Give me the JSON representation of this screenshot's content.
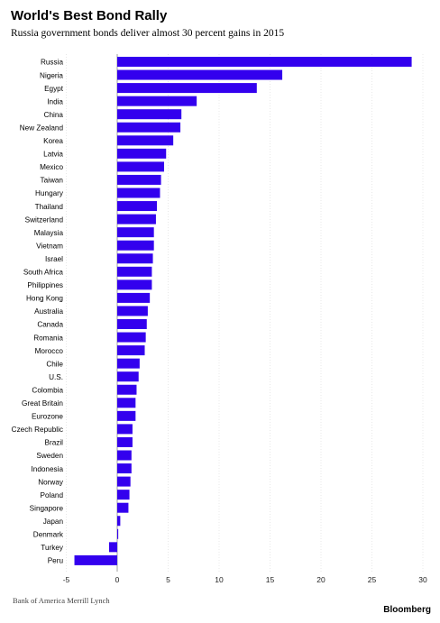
{
  "header": {
    "title": "World's Best Bond Rally",
    "subtitle": "Russia government bonds deliver almost 30 percent gains in 2015"
  },
  "footer": {
    "source": "Bank of America Merrill Lynch",
    "logo": "Bloomberg"
  },
  "colors": {
    "bar": "#3300ee",
    "grid": "#d9d9d9",
    "zero_line": "#888888"
  },
  "chart_data": {
    "type": "bar",
    "orientation": "horizontal",
    "title": "World's Best Bond Rally",
    "subtitle": "Russia government bonds deliver almost 30 percent gains in 2015",
    "xlabel": "",
    "ylabel": "",
    "xlim": [
      -5,
      30
    ],
    "xticks": [
      -5,
      0,
      5,
      10,
      15,
      20,
      25,
      30
    ],
    "grid": true,
    "categories": [
      "Russia",
      "Nigeria",
      "Egypt",
      "India",
      "China",
      "New Zealand",
      "Korea",
      "Latvia",
      "Mexico",
      "Taiwan",
      "Hungary",
      "Thailand",
      "Switzerland",
      "Malaysia",
      "Vietnam",
      "Israel",
      "South Africa",
      "Philippines",
      "Hong Kong",
      "Australia",
      "Canada",
      "Romania",
      "Morocco",
      "Chile",
      "U.S.",
      "Colombia",
      "Great Britain",
      "Eurozone",
      "Czech Republic",
      "Brazil",
      "Sweden",
      "Indonesia",
      "Norway",
      "Poland",
      "Singapore",
      "Japan",
      "Denmark",
      "Turkey",
      "Peru"
    ],
    "values": [
      28.9,
      16.2,
      13.7,
      7.8,
      6.3,
      6.2,
      5.5,
      4.8,
      4.6,
      4.3,
      4.2,
      3.9,
      3.8,
      3.6,
      3.6,
      3.5,
      3.4,
      3.4,
      3.2,
      3.0,
      2.9,
      2.8,
      2.7,
      2.2,
      2.1,
      1.9,
      1.8,
      1.8,
      1.5,
      1.5,
      1.4,
      1.4,
      1.3,
      1.2,
      1.1,
      0.3,
      0.1,
      -0.8,
      -4.2
    ]
  }
}
